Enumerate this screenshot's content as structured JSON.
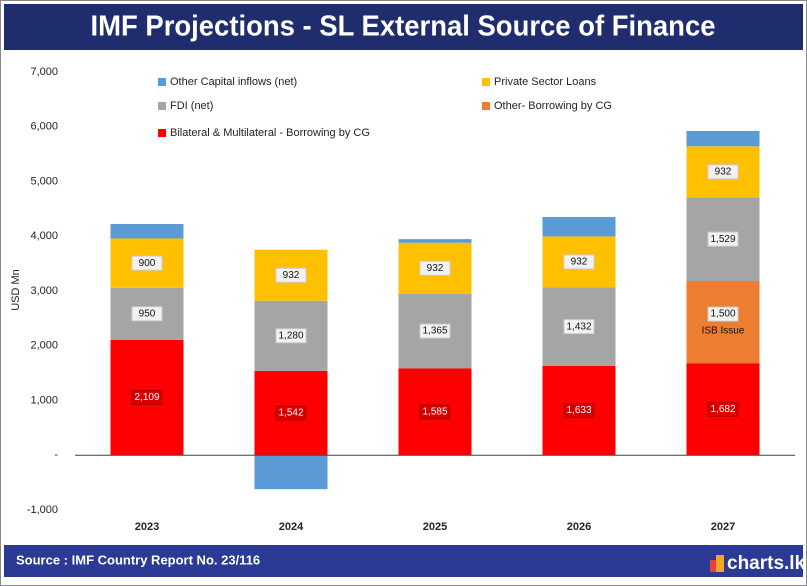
{
  "chart_data": {
    "type": "stacked_bar",
    "title": "IMF Projections - SL External Source of Finance",
    "y_label": "USD Mn",
    "categories": [
      "2023",
      "2024",
      "2025",
      "2026",
      "2027"
    ],
    "series": [
      {
        "name": "Bilateral & Multilateral - Borrowing by CG",
        "color": "#ff0000",
        "values": [
          2109,
          1542,
          1585,
          1633,
          1682
        ],
        "value_labels": [
          "2,109",
          "1,542",
          "1,585",
          "1,633",
          "1,682"
        ]
      },
      {
        "name": "Other- Borrowing by CG",
        "color": "#ed7d31",
        "values": [
          null,
          null,
          null,
          null,
          1500
        ],
        "value_labels": [
          null,
          null,
          null,
          null,
          "1,500"
        ]
      },
      {
        "name": "FDI (net)",
        "color": "#a5a5a5",
        "values": [
          950,
          1280,
          1365,
          1432,
          1529
        ],
        "value_labels": [
          "950",
          "1,280",
          "1,365",
          "1,432",
          "1,529"
        ]
      },
      {
        "name": "Private Sector Loans",
        "color": "#ffc000",
        "values": [
          900,
          932,
          932,
          932,
          932
        ],
        "value_labels": [
          "900",
          "932",
          "932",
          "932",
          "932"
        ]
      },
      {
        "name": "Other Capital inflows (net)",
        "color": "#5b9bd5",
        "values": [
          264,
          -620,
          65,
          355,
          280
        ]
      }
    ],
    "annotations": [
      "ISB Issue"
    ],
    "ylim": [
      -1000,
      7000
    ],
    "yticks": [
      {
        "value": -1000,
        "label": "-1,000"
      },
      {
        "value": 0,
        "label": "-"
      },
      {
        "value": 1000,
        "label": "1,000"
      },
      {
        "value": 2000,
        "label": "2,000"
      },
      {
        "value": 3000,
        "label": "3,000"
      },
      {
        "value": 4000,
        "label": "4,000"
      },
      {
        "value": 5000,
        "label": "5,000"
      },
      {
        "value": 6000,
        "label": "6,000"
      },
      {
        "value": 7000,
        "label": "7,000"
      }
    ],
    "source": "Source : IMF Country Report No. 23/116",
    "brand": "charts.lk"
  }
}
